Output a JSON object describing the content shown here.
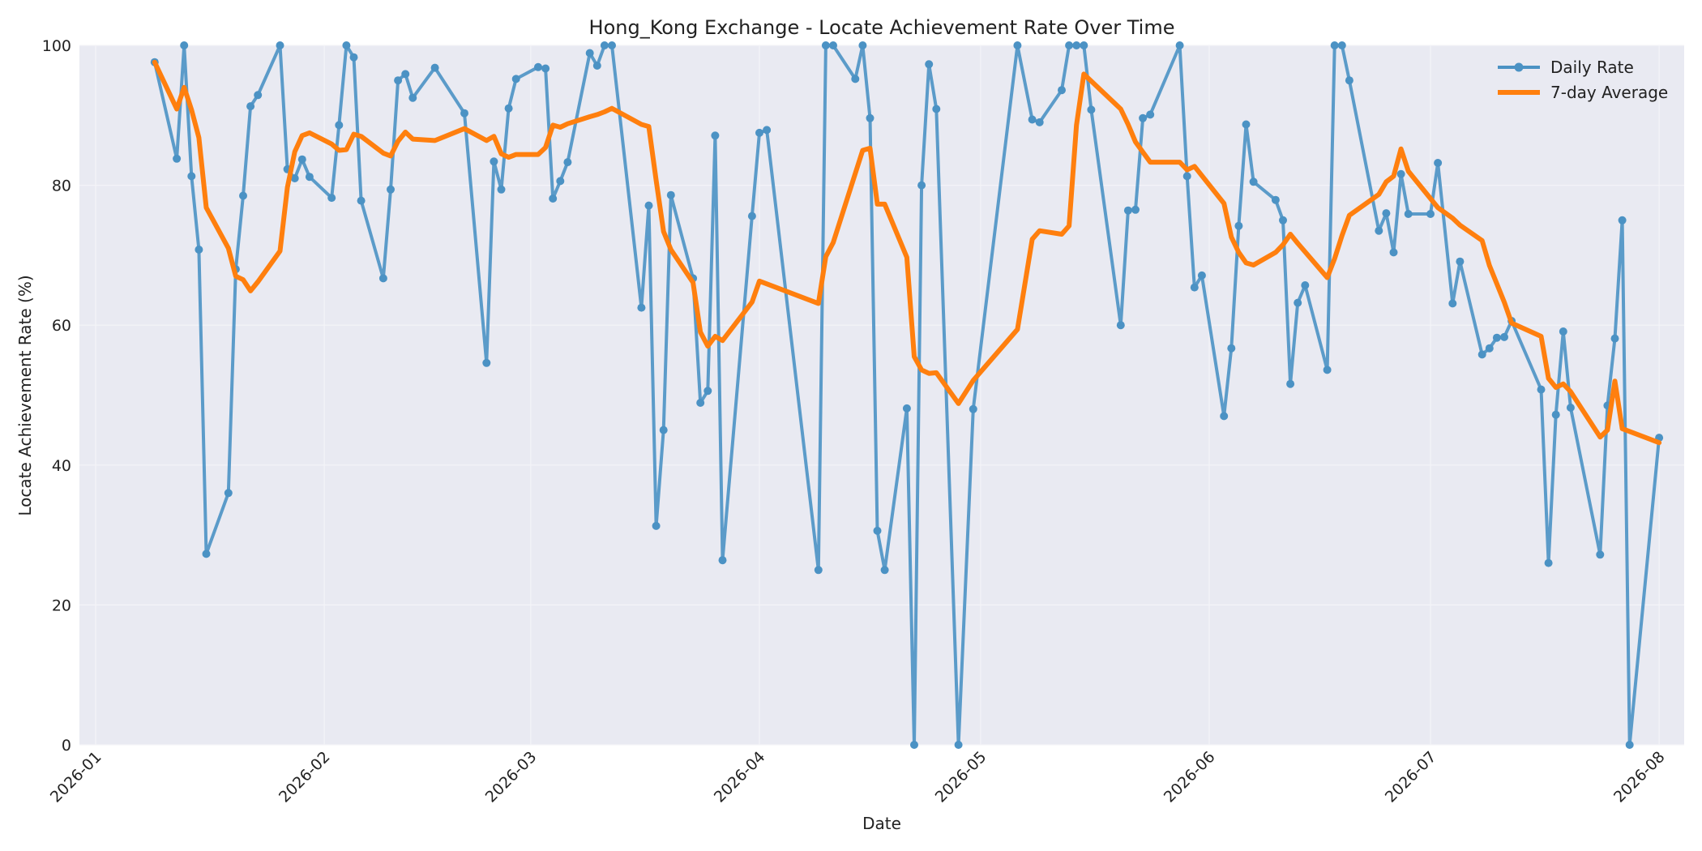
{
  "colors": {
    "daily": "#4b92c4",
    "average": "#ff7f0e",
    "plot_background": "#e9eaf2",
    "grid": "#f4f4f8"
  },
  "chart_data": {
    "type": "line",
    "title": "Hong_Kong Exchange - Locate Achievement Rate Over Time",
    "xlabel": "Date",
    "ylabel": "Locate Achievement Rate (%)",
    "ylim": [
      0,
      100
    ],
    "xlim": [
      "2026-01-01",
      "2026-07-31"
    ],
    "y_ticks": [
      0,
      20,
      40,
      60,
      80,
      100
    ],
    "x_ticks": [
      "2026-01",
      "2026-02",
      "2026-03",
      "2026-04",
      "2026-05",
      "2026-06",
      "2026-07",
      "2026-08"
    ],
    "x_tick_dates": [
      "2026-01-01",
      "2026-02-01",
      "2026-03-01",
      "2026-04-01",
      "2026-05-01",
      "2026-06-01",
      "2026-07-01",
      "2026-08-01"
    ],
    "grid": true,
    "legend_position": "top-right",
    "series": [
      {
        "name": "Daily Rate",
        "marker": "circle",
        "points": [
          [
            "2026-01-09",
            97.6
          ],
          [
            "2026-01-12",
            83.8
          ],
          [
            "2026-01-13",
            100
          ],
          [
            "2026-01-14",
            81.3
          ],
          [
            "2026-01-15",
            70.8
          ],
          [
            "2026-01-16",
            27.3
          ],
          [
            "2026-01-19",
            36.0
          ],
          [
            "2026-01-20",
            68.0
          ],
          [
            "2026-01-21",
            78.5
          ],
          [
            "2026-01-22",
            91.3
          ],
          [
            "2026-01-23",
            92.9
          ],
          [
            "2026-01-26",
            100
          ],
          [
            "2026-01-27",
            82.3
          ],
          [
            "2026-01-28",
            81.0
          ],
          [
            "2026-01-29",
            83.7
          ],
          [
            "2026-01-30",
            81.2
          ],
          [
            "2026-02-02",
            78.2
          ],
          [
            "2026-02-03",
            88.6
          ],
          [
            "2026-02-04",
            100
          ],
          [
            "2026-02-05",
            98.3
          ],
          [
            "2026-02-06",
            77.8
          ],
          [
            "2026-02-09",
            66.7
          ],
          [
            "2026-02-10",
            79.4
          ],
          [
            "2026-02-11",
            95.0
          ],
          [
            "2026-02-12",
            95.9
          ],
          [
            "2026-02-13",
            92.5
          ],
          [
            "2026-02-16",
            96.8
          ],
          [
            "2026-02-20",
            90.3
          ],
          [
            "2026-02-23",
            54.6
          ],
          [
            "2026-02-24",
            83.4
          ],
          [
            "2026-02-25",
            79.4
          ],
          [
            "2026-02-26",
            91.0
          ],
          [
            "2026-02-27",
            95.2
          ],
          [
            "2026-03-02",
            96.9
          ],
          [
            "2026-03-03",
            96.7
          ],
          [
            "2026-03-04",
            78.1
          ],
          [
            "2026-03-05",
            80.6
          ],
          [
            "2026-03-06",
            83.3
          ],
          [
            "2026-03-09",
            98.9
          ],
          [
            "2026-03-10",
            97.1
          ],
          [
            "2026-03-11",
            100
          ],
          [
            "2026-03-12",
            100
          ],
          [
            "2026-03-16",
            62.5
          ],
          [
            "2026-03-17",
            77.1
          ],
          [
            "2026-03-18",
            31.3
          ],
          [
            "2026-03-19",
            45.0
          ],
          [
            "2026-03-20",
            78.6
          ],
          [
            "2026-03-23",
            66.7
          ],
          [
            "2026-03-24",
            48.9
          ],
          [
            "2026-03-25",
            50.6
          ],
          [
            "2026-03-26",
            87.1
          ],
          [
            "2026-03-27",
            26.4
          ],
          [
            "2026-03-31",
            75.6
          ],
          [
            "2026-04-01",
            87.5
          ],
          [
            "2026-04-02",
            87.9
          ],
          [
            "2026-04-09",
            25.0
          ],
          [
            "2026-04-10",
            100
          ],
          [
            "2026-04-11",
            100
          ],
          [
            "2026-04-14",
            95.2
          ],
          [
            "2026-04-15",
            100
          ],
          [
            "2026-04-16",
            89.6
          ],
          [
            "2026-04-17",
            30.6
          ],
          [
            "2026-04-18",
            25.0
          ],
          [
            "2026-04-21",
            48.1
          ],
          [
            "2026-04-22",
            0
          ],
          [
            "2026-04-23",
            80.0
          ],
          [
            "2026-04-24",
            97.3
          ],
          [
            "2026-04-25",
            90.9
          ],
          [
            "2026-04-28",
            0
          ],
          [
            "2026-04-30",
            48.0
          ],
          [
            "2026-05-06",
            100
          ],
          [
            "2026-05-08",
            89.4
          ],
          [
            "2026-05-09",
            89.0
          ],
          [
            "2026-05-12",
            93.6
          ],
          [
            "2026-05-13",
            100
          ],
          [
            "2026-05-14",
            100
          ],
          [
            "2026-05-15",
            100
          ],
          [
            "2026-05-16",
            90.8
          ],
          [
            "2026-05-20",
            60.0
          ],
          [
            "2026-05-21",
            76.4
          ],
          [
            "2026-05-22",
            76.5
          ],
          [
            "2026-05-23",
            89.6
          ],
          [
            "2026-05-24",
            90.1
          ],
          [
            "2026-05-28",
            100
          ],
          [
            "2026-05-29",
            81.3
          ],
          [
            "2026-05-30",
            65.4
          ],
          [
            "2026-05-31",
            67.1
          ],
          [
            "2026-06-03",
            47.0
          ],
          [
            "2026-06-04",
            56.7
          ],
          [
            "2026-06-05",
            74.2
          ],
          [
            "2026-06-06",
            88.7
          ],
          [
            "2026-06-07",
            80.5
          ],
          [
            "2026-06-10",
            77.9
          ],
          [
            "2026-06-11",
            75.0
          ],
          [
            "2026-06-12",
            51.6
          ],
          [
            "2026-06-13",
            63.2
          ],
          [
            "2026-06-14",
            65.7
          ],
          [
            "2026-06-17",
            53.6
          ],
          [
            "2026-06-18",
            100
          ],
          [
            "2026-06-19",
            100
          ],
          [
            "2026-06-20",
            95.0
          ],
          [
            "2026-06-24",
            73.5
          ],
          [
            "2026-06-25",
            76.0
          ],
          [
            "2026-06-26",
            70.4
          ],
          [
            "2026-06-27",
            81.6
          ],
          [
            "2026-06-28",
            75.9
          ],
          [
            "2026-07-01",
            75.9
          ],
          [
            "2026-07-02",
            83.2
          ],
          [
            "2026-07-04",
            63.1
          ],
          [
            "2026-07-05",
            69.1
          ],
          [
            "2026-07-08",
            55.8
          ],
          [
            "2026-07-09",
            56.7
          ],
          [
            "2026-07-10",
            58.2
          ],
          [
            "2026-07-11",
            58.3
          ],
          [
            "2026-07-12",
            60.6
          ],
          [
            "2026-07-16",
            50.8
          ],
          [
            "2026-07-17",
            26.0
          ],
          [
            "2026-07-18",
            47.2
          ],
          [
            "2026-07-19",
            59.1
          ],
          [
            "2026-07-20",
            48.2
          ],
          [
            "2026-07-24",
            27.2
          ],
          [
            "2026-07-25",
            48.5
          ],
          [
            "2026-07-26",
            58.1
          ],
          [
            "2026-07-27",
            75.0
          ],
          [
            "2026-07-28",
            0
          ],
          [
            "2026-08-01",
            43.9
          ]
        ]
      },
      {
        "name": "7-day Average",
        "marker": "none",
        "points": [
          [
            "2026-01-09",
            97.6
          ],
          [
            "2026-01-12",
            90.9
          ],
          [
            "2026-01-13",
            94.0
          ],
          [
            "2026-01-14",
            90.8
          ],
          [
            "2026-01-15",
            86.8
          ],
          [
            "2026-01-16",
            76.8
          ],
          [
            "2026-01-19",
            71.0
          ],
          [
            "2026-01-20",
            67.0
          ],
          [
            "2026-01-21",
            66.5
          ],
          [
            "2026-01-22",
            64.9
          ],
          [
            "2026-01-23",
            66.2
          ],
          [
            "2026-01-26",
            70.6
          ],
          [
            "2026-01-27",
            79.7
          ],
          [
            "2026-01-28",
            84.8
          ],
          [
            "2026-01-29",
            87.1
          ],
          [
            "2026-01-30",
            87.5
          ],
          [
            "2026-02-02",
            85.9
          ],
          [
            "2026-02-03",
            85.0
          ],
          [
            "2026-02-04",
            85.1
          ],
          [
            "2026-02-05",
            87.3
          ],
          [
            "2026-02-06",
            87.0
          ],
          [
            "2026-02-09",
            84.6
          ],
          [
            "2026-02-10",
            84.2
          ],
          [
            "2026-02-11",
            86.3
          ],
          [
            "2026-02-12",
            87.6
          ],
          [
            "2026-02-13",
            86.6
          ],
          [
            "2026-02-16",
            86.4
          ],
          [
            "2026-02-20",
            88.1
          ],
          [
            "2026-02-23",
            86.4
          ],
          [
            "2026-02-24",
            87.0
          ],
          [
            "2026-02-25",
            84.5
          ],
          [
            "2026-02-26",
            84.0
          ],
          [
            "2026-02-27",
            84.4
          ],
          [
            "2026-03-02",
            84.4
          ],
          [
            "2026-03-03",
            85.4
          ],
          [
            "2026-03-04",
            88.6
          ],
          [
            "2026-03-05",
            88.3
          ],
          [
            "2026-03-06",
            88.8
          ],
          [
            "2026-03-09",
            89.8
          ],
          [
            "2026-03-10",
            90.1
          ],
          [
            "2026-03-11",
            90.5
          ],
          [
            "2026-03-12",
            91.0
          ],
          [
            "2026-03-16",
            88.7
          ],
          [
            "2026-03-17",
            88.4
          ],
          [
            "2026-03-18",
            80.7
          ],
          [
            "2026-03-19",
            73.4
          ],
          [
            "2026-03-20",
            70.8
          ],
          [
            "2026-03-23",
            66.1
          ],
          [
            "2026-03-24",
            59.0
          ],
          [
            "2026-03-25",
            57.0
          ],
          [
            "2026-03-26",
            58.4
          ],
          [
            "2026-03-27",
            57.8
          ],
          [
            "2026-03-31",
            63.3
          ],
          [
            "2026-04-01",
            66.3
          ],
          [
            "2026-04-09",
            63.1
          ],
          [
            "2026-04-10",
            69.8
          ],
          [
            "2026-04-11",
            71.8
          ],
          [
            "2026-04-15",
            85.0
          ],
          [
            "2026-04-16",
            85.3
          ],
          [
            "2026-04-17",
            77.3
          ],
          [
            "2026-04-18",
            77.3
          ],
          [
            "2026-04-21",
            69.7
          ],
          [
            "2026-04-22",
            55.5
          ],
          [
            "2026-04-23",
            53.6
          ],
          [
            "2026-04-24",
            53.1
          ],
          [
            "2026-04-25",
            53.2
          ],
          [
            "2026-04-28",
            48.8
          ],
          [
            "2026-04-30",
            52.1
          ],
          [
            "2026-05-06",
            59.4
          ],
          [
            "2026-05-08",
            72.3
          ],
          [
            "2026-05-09",
            73.5
          ],
          [
            "2026-05-12",
            73.0
          ],
          [
            "2026-05-13",
            74.2
          ],
          [
            "2026-05-14",
            88.6
          ],
          [
            "2026-05-15",
            95.9
          ],
          [
            "2026-05-20",
            90.9
          ],
          [
            "2026-05-21",
            88.7
          ],
          [
            "2026-05-22",
            86.2
          ],
          [
            "2026-05-24",
            83.3
          ],
          [
            "2026-05-28",
            83.3
          ],
          [
            "2026-05-29",
            82.2
          ],
          [
            "2026-05-30",
            82.7
          ],
          [
            "2026-06-03",
            77.4
          ],
          [
            "2026-06-04",
            72.6
          ],
          [
            "2026-06-05",
            70.4
          ],
          [
            "2026-06-06",
            68.9
          ],
          [
            "2026-06-07",
            68.6
          ],
          [
            "2026-06-10",
            70.4
          ],
          [
            "2026-06-11",
            71.5
          ],
          [
            "2026-06-12",
            73.0
          ],
          [
            "2026-06-13",
            71.7
          ],
          [
            "2026-06-17",
            66.8
          ],
          [
            "2026-06-18",
            69.5
          ],
          [
            "2026-06-19",
            72.8
          ],
          [
            "2026-06-20",
            75.7
          ],
          [
            "2026-06-24",
            78.7
          ],
          [
            "2026-06-25",
            80.5
          ],
          [
            "2026-06-26",
            81.3
          ],
          [
            "2026-06-27",
            85.2
          ],
          [
            "2026-06-28",
            82.0
          ],
          [
            "2026-07-02",
            76.8
          ],
          [
            "2026-07-04",
            75.3
          ],
          [
            "2026-07-05",
            74.3
          ],
          [
            "2026-07-08",
            72.1
          ],
          [
            "2026-07-09",
            68.5
          ],
          [
            "2026-07-11",
            63.3
          ],
          [
            "2026-07-12",
            60.3
          ],
          [
            "2026-07-16",
            58.4
          ],
          [
            "2026-07-17",
            52.4
          ],
          [
            "2026-07-18",
            51.1
          ],
          [
            "2026-07-19",
            51.6
          ],
          [
            "2026-07-20",
            50.5
          ],
          [
            "2026-07-24",
            44.0
          ],
          [
            "2026-07-25",
            45.0
          ],
          [
            "2026-07-26",
            52.0
          ],
          [
            "2026-07-27",
            45.2
          ],
          [
            "2026-08-01",
            43.2
          ]
        ]
      }
    ]
  }
}
